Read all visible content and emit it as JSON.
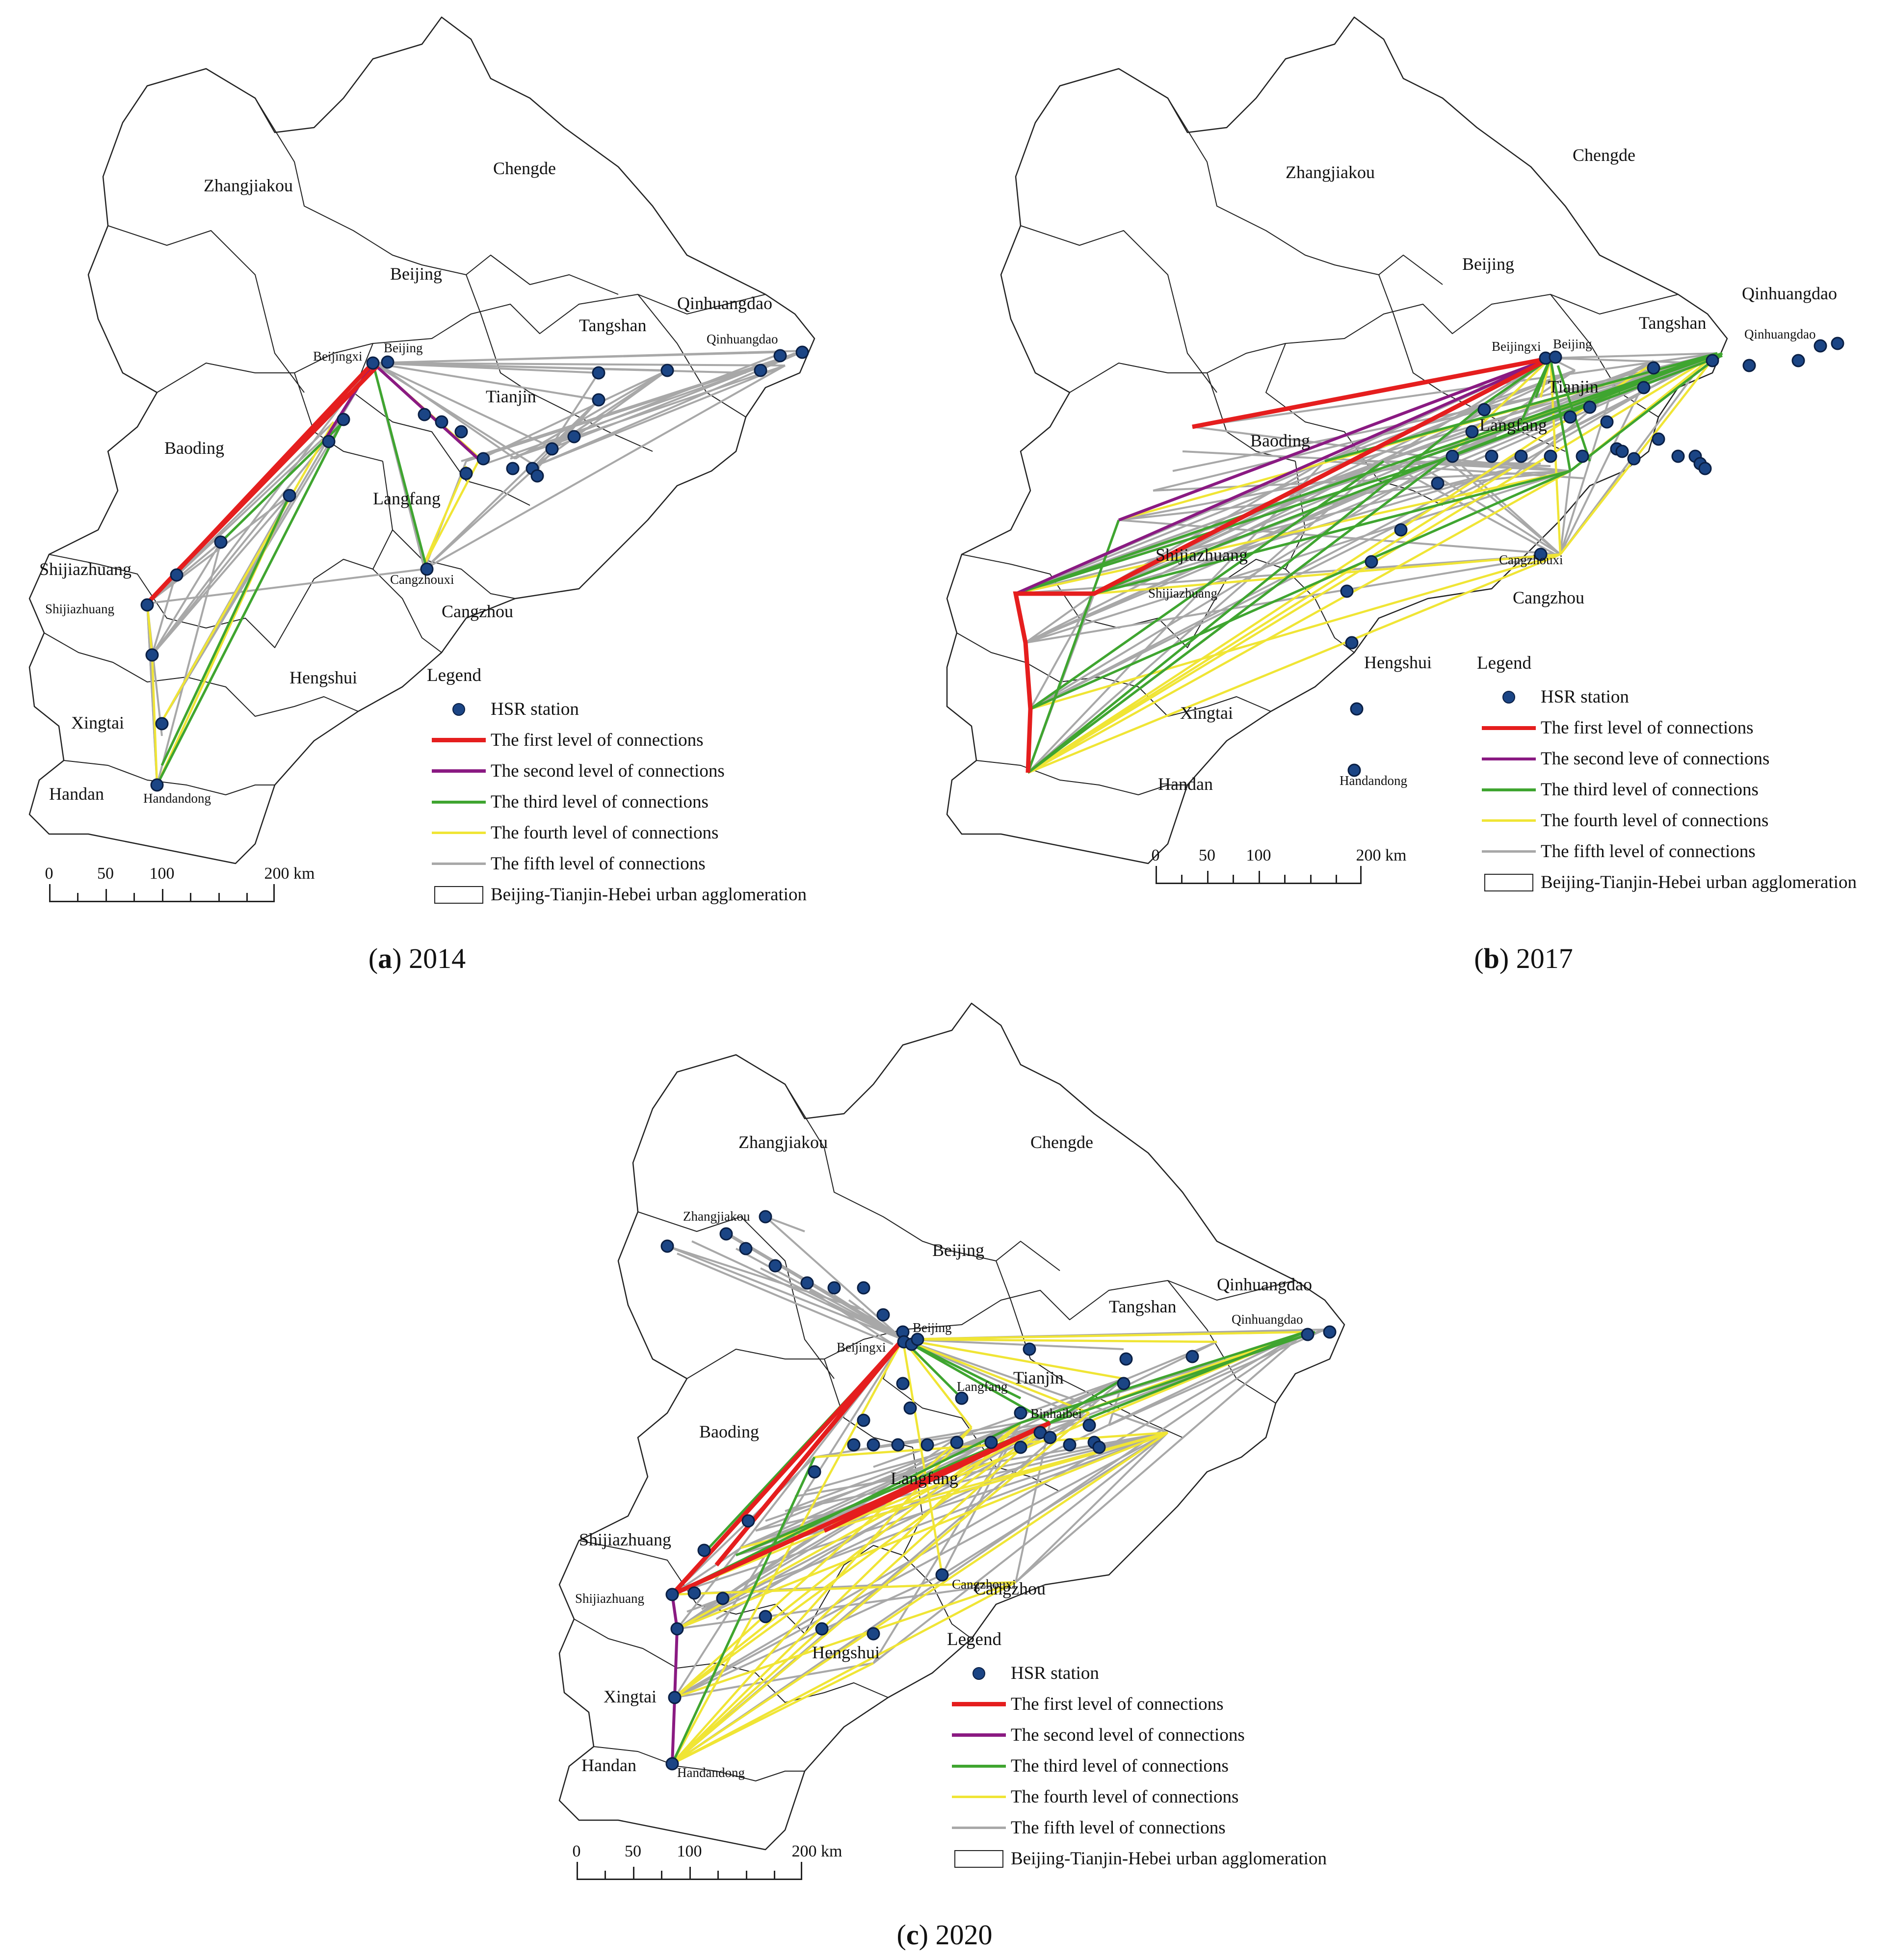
{
  "legend_title": "Legend",
  "legend_items": {
    "station": "HSR station",
    "first": "The first level of connections",
    "second": "The second level of connections",
    "second_alt": "The second leve of connections",
    "third": "The third level of connections",
    "fourth": "The fourth level of connections",
    "fifth": "The fifth level of connections",
    "region": "Beijing-Tianjin-Hebei urban agglomeration"
  },
  "scale_bar": {
    "marks": [
      "0",
      "50",
      "100",
      "200 km"
    ]
  },
  "colors": {
    "first": "#e51e1e",
    "second": "#8a1a82",
    "third": "#3fa530",
    "fourth": "#f0e535",
    "fifth": "#a8a8a8",
    "station": "#1b4585"
  },
  "panels": [
    {
      "caption_letter": "a",
      "caption_year": "2014",
      "region_labels": [
        "Zhangjiakou",
        "Chengde",
        "Beijing",
        "Tangshan",
        "Qinhuangdao",
        "Baoding",
        "Tianjin",
        "Langfang",
        "Shijiazhuang",
        "Cangzhou",
        "Hengshui",
        "Xingtai",
        "Handan"
      ],
      "station_labels": [
        "Beijingxi",
        "Beijing",
        "Qinhuangdao",
        "Shijiazhuang",
        "Cangzhouxi",
        "Handandong"
      ]
    },
    {
      "caption_letter": "b",
      "caption_year": "2017",
      "region_labels": [
        "Zhangjiakou",
        "Chengde",
        "Beijing",
        "Tangshan",
        "Qinhuangdao",
        "Baoding",
        "Tianjin",
        "Langfang",
        "Shijiazhuang",
        "Cangzhou",
        "Hengshui",
        "Xingtai",
        "Handan"
      ],
      "station_labels": [
        "Beijingxi",
        "Beijing",
        "Qinhuangdao",
        "Shijiazhuang",
        "Cangzhouxi",
        "Handandong"
      ]
    },
    {
      "caption_letter": "c",
      "caption_year": "2020",
      "region_labels": [
        "Zhangjiakou",
        "Chengde",
        "Beijing",
        "Tangshan",
        "Qinhuangdao",
        "Baoding",
        "Tianjin",
        "Langfang",
        "Shijiazhuang",
        "Cangzhou",
        "Hengshui",
        "Xingtai",
        "Handan"
      ],
      "station_labels": [
        "Zhangjiakou",
        "Beijingxi",
        "Beijing",
        "Qinhuangdao",
        "Langfang",
        "Binhaibei",
        "Shijiazhuang",
        "Cangzhouxi",
        "Handandong"
      ]
    }
  ]
}
